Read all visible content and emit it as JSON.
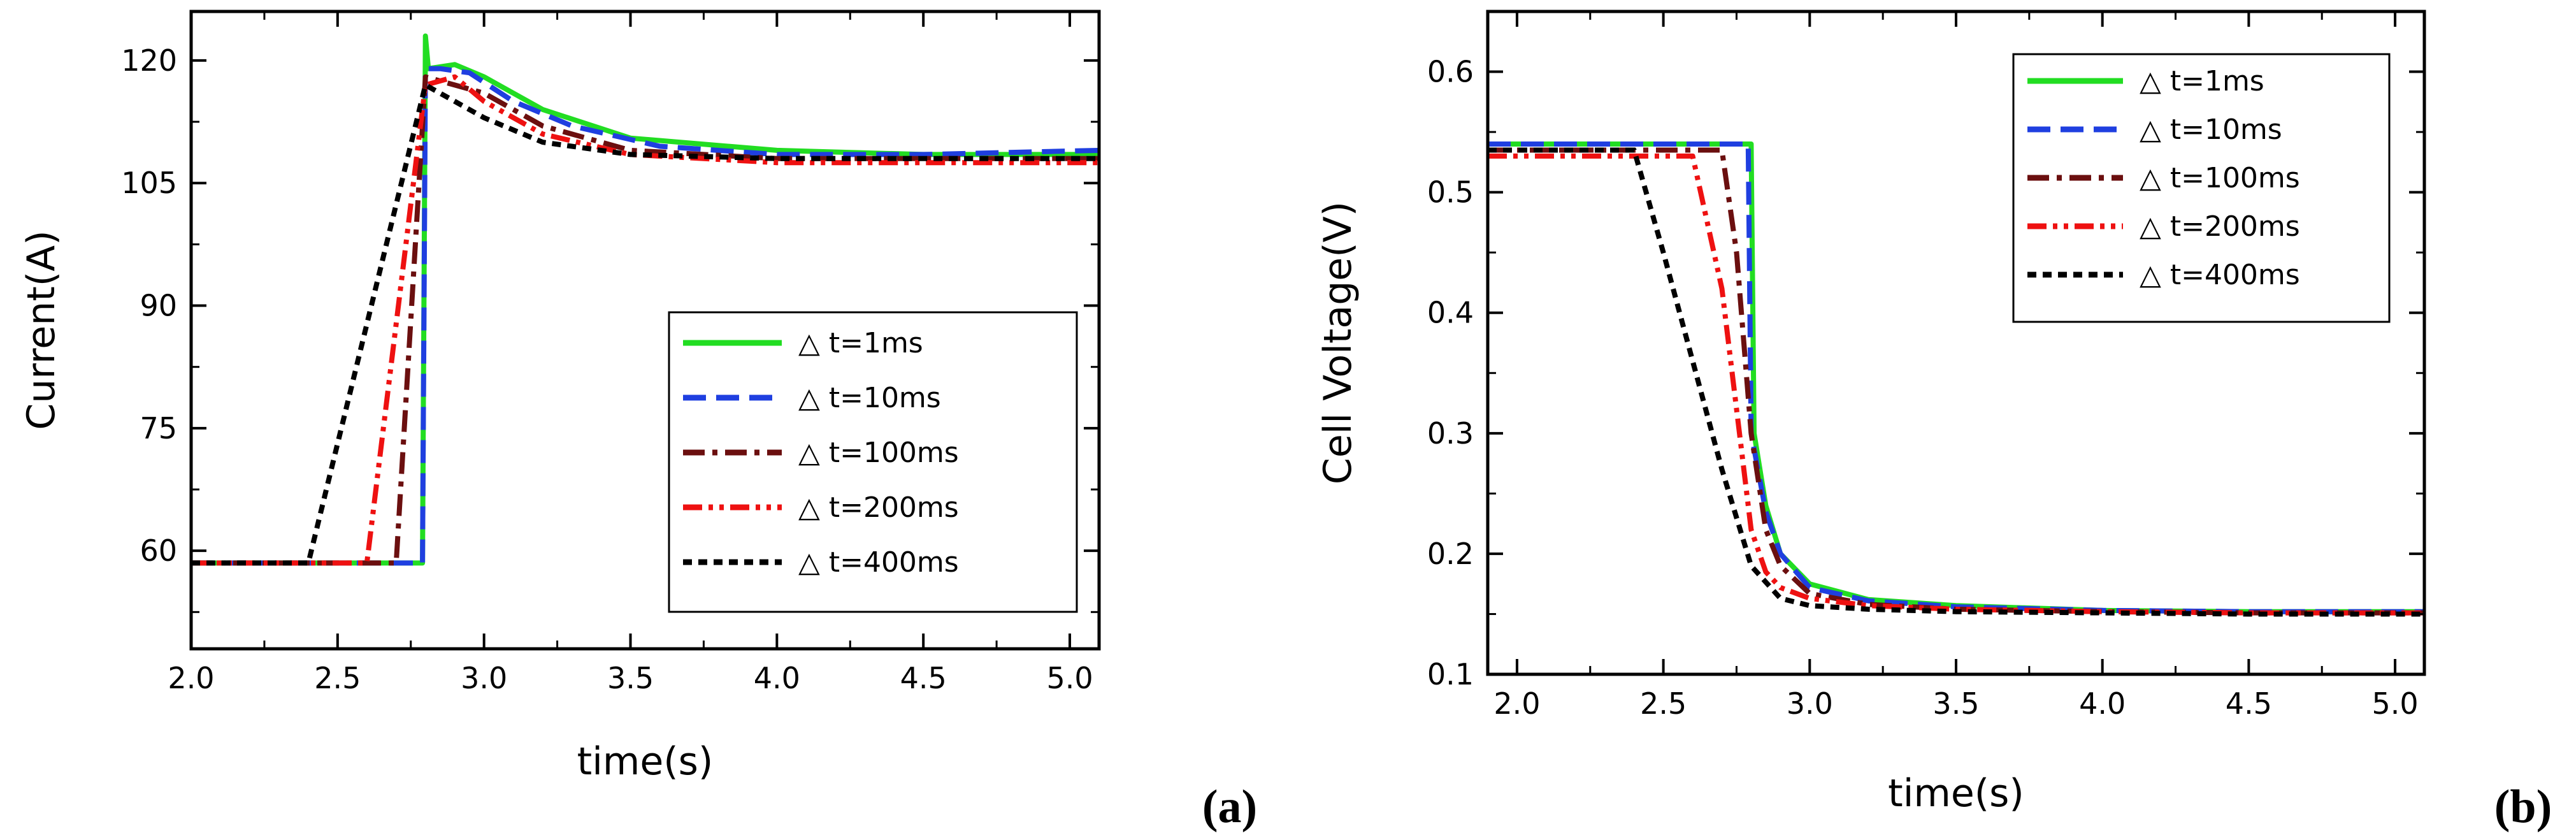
{
  "colors": {
    "t1ms": "#22dd22",
    "t10ms": "#1f3fe0",
    "t100ms": "#6b0f0f",
    "t200ms": "#ee1111",
    "t400ms": "#000000"
  },
  "chart_data": [
    {
      "id": "a",
      "type": "line",
      "panel_label": "(a)",
      "title": "",
      "xlabel": "time(s)",
      "ylabel": "Current(A)",
      "xlim": [
        2.0,
        5.1
      ],
      "ylim": [
        48,
        126
      ],
      "xticks": [
        2.0,
        2.5,
        3.0,
        3.5,
        4.0,
        4.5,
        5.0
      ],
      "xtick_labels": [
        "2.0",
        "2.5",
        "3.0",
        "3.5",
        "4.0",
        "4.5",
        "5.0"
      ],
      "yticks": [
        60,
        75,
        90,
        105,
        120
      ],
      "ytick_labels": [
        "60",
        "75",
        "90",
        "105",
        "120"
      ],
      "grid": false,
      "legend_position": "lower-right",
      "series": [
        {
          "name": "△ t=1ms",
          "color_key": "t1ms",
          "dash": "solid",
          "x": [
            2.0,
            2.79,
            2.8,
            2.81,
            2.9,
            3.0,
            3.2,
            3.5,
            4.0,
            4.5,
            5.1
          ],
          "y": [
            58.5,
            58.5,
            123,
            119,
            119.5,
            118,
            114,
            110.5,
            109,
            108.5,
            108.5
          ]
        },
        {
          "name": "△ t=10ms",
          "color_key": "t10ms",
          "dash": "dashed",
          "x": [
            2.0,
            2.79,
            2.8,
            2.85,
            2.95,
            3.1,
            3.3,
            3.6,
            4.0,
            4.5,
            5.1
          ],
          "y": [
            58.5,
            58.5,
            119,
            119,
            118.5,
            115,
            112,
            109.5,
            108.5,
            108.5,
            109
          ]
        },
        {
          "name": "△ t=100ms",
          "color_key": "t100ms",
          "dash": "dashdot",
          "x": [
            2.0,
            2.7,
            2.8,
            2.9,
            3.0,
            3.2,
            3.5,
            4.0,
            4.5,
            5.1
          ],
          "y": [
            58.5,
            58.5,
            118,
            117,
            116,
            112,
            109,
            108,
            108,
            108
          ]
        },
        {
          "name": "△ t=200ms",
          "color_key": "t200ms",
          "dash": "dashdotdot",
          "x": [
            2.0,
            2.6,
            2.8,
            2.9,
            3.0,
            3.2,
            3.5,
            4.0,
            4.5,
            5.1
          ],
          "y": [
            58.5,
            58.5,
            117,
            118,
            115,
            111,
            108.5,
            107.5,
            107.5,
            107.5
          ]
        },
        {
          "name": "△ t=400ms",
          "color_key": "t400ms",
          "dash": "shortdash",
          "x": [
            2.0,
            2.4,
            2.8,
            2.85,
            3.0,
            3.2,
            3.5,
            4.0,
            4.5,
            5.1
          ],
          "y": [
            58.5,
            58.5,
            117,
            116,
            113,
            110,
            108.5,
            108,
            108,
            108
          ]
        }
      ]
    },
    {
      "id": "b",
      "type": "line",
      "panel_label": "(b)",
      "title": "",
      "xlabel": "time(s)",
      "ylabel": "Cell Voltage(V)",
      "xlim": [
        1.9,
        5.1
      ],
      "ylim": [
        0.1,
        0.65
      ],
      "xticks": [
        2.0,
        2.5,
        3.0,
        3.5,
        4.0,
        4.5,
        5.0
      ],
      "xtick_labels": [
        "2.0",
        "2.5",
        "3.0",
        "3.5",
        "4.0",
        "4.5",
        "5.0"
      ],
      "yticks": [
        0.1,
        0.2,
        0.3,
        0.4,
        0.5,
        0.6
      ],
      "ytick_labels": [
        "0.1",
        "0.2",
        "0.3",
        "0.4",
        "0.5",
        "0.6"
      ],
      "grid": false,
      "legend_position": "top-right",
      "series": [
        {
          "name": "△ t=1ms",
          "color_key": "t1ms",
          "dash": "solid",
          "x": [
            1.9,
            2.8,
            2.81,
            2.85,
            2.9,
            3.0,
            3.2,
            3.5,
            4.0,
            4.5,
            5.1
          ],
          "y": [
            0.54,
            0.54,
            0.3,
            0.24,
            0.2,
            0.175,
            0.162,
            0.157,
            0.153,
            0.152,
            0.152
          ]
        },
        {
          "name": "△ t=10ms",
          "color_key": "t10ms",
          "dash": "dashed",
          "x": [
            1.9,
            2.79,
            2.8,
            2.85,
            2.9,
            3.0,
            3.2,
            3.5,
            4.0,
            4.5,
            5.1
          ],
          "y": [
            0.54,
            0.54,
            0.3,
            0.235,
            0.2,
            0.172,
            0.161,
            0.156,
            0.153,
            0.152,
            0.152
          ]
        },
        {
          "name": "△ t=100ms",
          "color_key": "t100ms",
          "dash": "dashdot",
          "x": [
            1.9,
            2.7,
            2.75,
            2.8,
            2.85,
            2.9,
            3.0,
            3.2,
            3.5,
            4.0,
            4.5,
            5.1
          ],
          "y": [
            0.535,
            0.535,
            0.45,
            0.3,
            0.22,
            0.19,
            0.167,
            0.158,
            0.154,
            0.152,
            0.151,
            0.151
          ]
        },
        {
          "name": "△ t=200ms",
          "color_key": "t200ms",
          "dash": "dashdotdot",
          "x": [
            1.9,
            2.6,
            2.7,
            2.75,
            2.8,
            2.85,
            2.9,
            3.0,
            3.2,
            3.5,
            4.0,
            4.5,
            5.1
          ],
          "y": [
            0.53,
            0.53,
            0.42,
            0.32,
            0.22,
            0.185,
            0.172,
            0.163,
            0.157,
            0.154,
            0.152,
            0.151,
            0.151
          ]
        },
        {
          "name": "△ t=400ms",
          "color_key": "t400ms",
          "dash": "shortdash",
          "x": [
            1.9,
            2.4,
            2.5,
            2.6,
            2.7,
            2.8,
            2.9,
            3.0,
            3.2,
            3.5,
            4.0,
            4.5,
            5.1
          ],
          "y": [
            0.535,
            0.535,
            0.45,
            0.36,
            0.27,
            0.19,
            0.163,
            0.157,
            0.154,
            0.152,
            0.151,
            0.15,
            0.15
          ]
        }
      ]
    }
  ]
}
